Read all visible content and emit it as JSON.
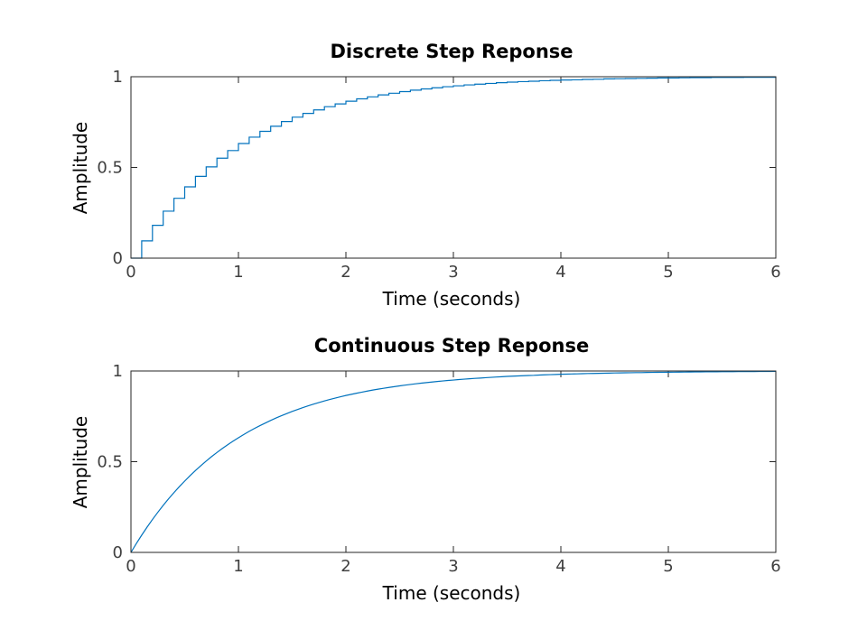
{
  "chart_data": [
    {
      "type": "line",
      "subtype": "stairs",
      "title": "Discrete Step Reponse",
      "xlabel": "Time (seconds)",
      "ylabel": "Amplitude",
      "xlim": [
        0,
        6
      ],
      "ylim": [
        0,
        1
      ],
      "xticks": [
        "0",
        "1",
        "2",
        "3",
        "4",
        "5",
        "6"
      ],
      "yticks": [
        "0",
        "0.5",
        "1"
      ],
      "steady_state": 1,
      "series": [
        {
          "color": "#0072BD",
          "x": [
            0,
            0.1,
            0.2,
            0.3,
            0.4,
            0.5,
            0.6,
            0.7,
            0.8,
            0.9,
            1.0,
            1.1,
            1.2,
            1.3,
            1.4,
            1.5,
            1.6,
            1.7,
            1.8,
            1.9,
            2.0,
            2.1,
            2.2,
            2.3,
            2.4,
            2.5,
            2.6,
            2.7,
            2.8,
            2.9,
            3.0,
            3.1,
            3.2,
            3.3,
            3.4,
            3.5,
            3.6,
            3.7,
            3.8,
            3.9,
            4.0,
            4.1,
            4.2,
            4.3,
            4.4,
            4.5,
            4.6,
            4.7,
            4.8,
            4.9,
            5.0,
            5.1,
            5.2,
            5.3,
            5.4,
            5.5,
            5.6,
            5.7,
            5.8,
            5.9,
            6.0
          ],
          "y": [
            0,
            0.095,
            0.181,
            0.259,
            0.33,
            0.393,
            0.451,
            0.503,
            0.551,
            0.593,
            0.632,
            0.667,
            0.699,
            0.727,
            0.753,
            0.777,
            0.798,
            0.817,
            0.835,
            0.85,
            0.865,
            0.878,
            0.889,
            0.9,
            0.909,
            0.918,
            0.926,
            0.933,
            0.939,
            0.945,
            0.95,
            0.955,
            0.959,
            0.963,
            0.967,
            0.97,
            0.973,
            0.975,
            0.978,
            0.98,
            0.982,
            0.983,
            0.985,
            0.986,
            0.988,
            0.989,
            0.99,
            0.991,
            0.992,
            0.993,
            0.993,
            0.994,
            0.995,
            0.995,
            0.996,
            0.996,
            0.996,
            0.997,
            0.997,
            0.997,
            0.998
          ]
        }
      ]
    },
    {
      "type": "line",
      "title": "Continuous Step Reponse",
      "xlabel": "Time (seconds)",
      "ylabel": "Amplitude",
      "xlim": [
        0,
        6
      ],
      "ylim": [
        0,
        1
      ],
      "xticks": [
        "0",
        "1",
        "2",
        "3",
        "4",
        "5",
        "6"
      ],
      "yticks": [
        "0",
        "0.5",
        "1"
      ],
      "steady_state": 1,
      "series": [
        {
          "color": "#0072BD",
          "x": [
            0,
            0.25,
            0.5,
            0.75,
            1.0,
            1.25,
            1.5,
            1.75,
            2.0,
            2.25,
            2.5,
            2.75,
            3.0,
            3.25,
            3.5,
            3.75,
            4.0,
            4.25,
            4.5,
            4.75,
            5.0,
            5.25,
            5.5,
            5.75,
            6.0
          ],
          "y": [
            0,
            0.221,
            0.393,
            0.528,
            0.632,
            0.713,
            0.777,
            0.826,
            0.865,
            0.895,
            0.918,
            0.936,
            0.95,
            0.961,
            0.97,
            0.976,
            0.982,
            0.986,
            0.989,
            0.991,
            0.993,
            0.995,
            0.996,
            0.997,
            0.998
          ]
        }
      ]
    }
  ]
}
